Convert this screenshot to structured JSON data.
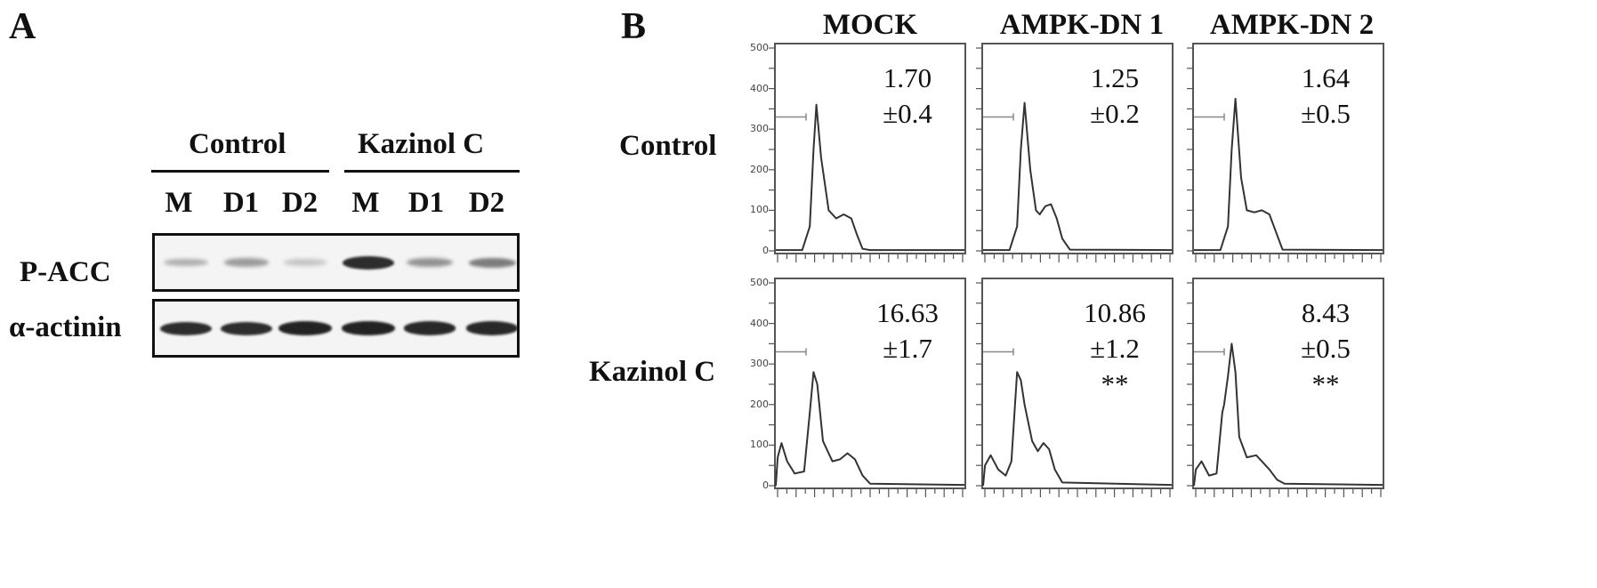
{
  "panel_a": {
    "letter": "A",
    "groups": [
      {
        "label": "Control"
      },
      {
        "label": "Kazinol C"
      }
    ],
    "lanes": [
      "M",
      "D1",
      "D2",
      "M",
      "D1",
      "D2"
    ],
    "rows": [
      {
        "label": "P-ACC",
        "band_intensity": [
          0.25,
          0.35,
          0.15,
          0.9,
          0.4,
          0.5
        ]
      },
      {
        "label": "α-actinin",
        "band_intensity": [
          0.9,
          0.9,
          0.95,
          0.95,
          0.92,
          0.92
        ]
      }
    ]
  },
  "panel_b": {
    "letter": "B",
    "columns": [
      "MOCK",
      "AMPK-DN 1",
      "AMPK-DN 2"
    ],
    "rows": [
      "Control",
      "Kazinol C"
    ],
    "y_ticks": [
      "500",
      "400",
      "300",
      "200",
      "100",
      "0"
    ],
    "cells": [
      [
        {
          "value": "1.70",
          "error": "±0.4",
          "sig": ""
        },
        {
          "value": "1.25",
          "error": "±0.2",
          "sig": ""
        },
        {
          "value": "1.64",
          "error": "±0.5",
          "sig": ""
        }
      ],
      [
        {
          "value": "16.63",
          "error": "±1.7",
          "sig": ""
        },
        {
          "value": "10.86",
          "error": "±1.2",
          "sig": "**"
        },
        {
          "value": "8.43",
          "error": "±0.5",
          "sig": "**"
        }
      ]
    ]
  }
}
